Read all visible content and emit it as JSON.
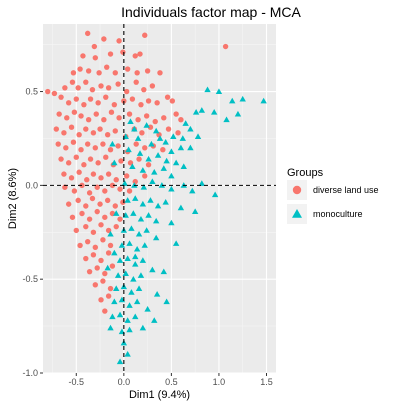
{
  "chart_data": {
    "type": "scatter",
    "title": "Individuals factor map - MCA",
    "xlabel": "Dim1 (9.4%)",
    "ylabel": "Dim2 (8.6%)",
    "xlim": [
      -0.85,
      1.6
    ],
    "ylim": [
      -1.0,
      0.86
    ],
    "x_ticks": [
      -0.5,
      0.0,
      0.5,
      1.0,
      1.5
    ],
    "x_tick_labels": [
      "-0.5",
      "0.0",
      "0.5",
      "1.0",
      "1.5"
    ],
    "y_ticks": [
      -1.0,
      -0.5,
      0.0,
      0.5
    ],
    "y_tick_labels": [
      "-1.0",
      "-0.5",
      "0.0",
      "0.5"
    ],
    "grid": true,
    "reference_lines": {
      "x": 0,
      "y": 0,
      "style": "dashed"
    },
    "legend": {
      "title": "Groups",
      "position": "right"
    },
    "series": [
      {
        "name": "diverse land use",
        "marker": "circle",
        "color": "#F8766D",
        "points": [
          [
            -0.38,
            0.81
          ],
          [
            -0.21,
            0.78
          ],
          [
            -0.31,
            0.74
          ],
          [
            -0.05,
            0.77
          ],
          [
            0.22,
            0.8
          ],
          [
            1.07,
            0.74
          ],
          [
            -0.43,
            0.69
          ],
          [
            -0.3,
            0.68
          ],
          [
            -0.14,
            0.7
          ],
          [
            -0.01,
            0.71
          ],
          [
            0.12,
            0.69
          ],
          [
            0.17,
            0.7
          ],
          [
            -0.53,
            0.6
          ],
          [
            -0.46,
            0.62
          ],
          [
            -0.37,
            0.61
          ],
          [
            -0.26,
            0.6
          ],
          [
            -0.18,
            0.63
          ],
          [
            -0.09,
            0.6
          ],
          [
            0.04,
            0.62
          ],
          [
            0.14,
            0.6
          ],
          [
            0.25,
            0.61
          ],
          [
            0.38,
            0.6
          ],
          [
            -0.62,
            0.52
          ],
          [
            -0.54,
            0.55
          ],
          [
            -0.48,
            0.52
          ],
          [
            -0.4,
            0.55
          ],
          [
            -0.33,
            0.51
          ],
          [
            -0.24,
            0.53
          ],
          [
            -0.16,
            0.52
          ],
          [
            -0.06,
            0.54
          ],
          [
            0.03,
            0.5
          ],
          [
            0.13,
            0.55
          ],
          [
            0.21,
            0.51
          ],
          [
            0.3,
            0.53
          ],
          [
            -0.8,
            0.5
          ],
          [
            -0.73,
            0.49
          ],
          [
            -0.66,
            0.47
          ],
          [
            -0.58,
            0.44
          ],
          [
            -0.5,
            0.46
          ],
          [
            -0.42,
            0.43
          ],
          [
            -0.35,
            0.46
          ],
          [
            -0.27,
            0.44
          ],
          [
            -0.19,
            0.47
          ],
          [
            -0.1,
            0.43
          ],
          [
            0.0,
            0.45
          ],
          [
            0.09,
            0.46
          ],
          [
            0.18,
            0.43
          ],
          [
            0.26,
            0.45
          ],
          [
            0.35,
            0.44
          ],
          [
            0.46,
            0.47
          ],
          [
            0.51,
            0.45
          ],
          [
            -0.68,
            0.38
          ],
          [
            -0.6,
            0.36
          ],
          [
            -0.52,
            0.39
          ],
          [
            -0.45,
            0.37
          ],
          [
            -0.37,
            0.35
          ],
          [
            -0.29,
            0.38
          ],
          [
            -0.21,
            0.35
          ],
          [
            -0.13,
            0.39
          ],
          [
            -0.05,
            0.36
          ],
          [
            0.06,
            0.38
          ],
          [
            0.15,
            0.35
          ],
          [
            0.24,
            0.37
          ],
          [
            0.33,
            0.34
          ],
          [
            0.42,
            0.36
          ],
          [
            0.55,
            0.38
          ],
          [
            0.6,
            0.35
          ],
          [
            -0.71,
            0.3
          ],
          [
            -0.63,
            0.28
          ],
          [
            -0.55,
            0.31
          ],
          [
            -0.47,
            0.27
          ],
          [
            -0.4,
            0.3
          ],
          [
            -0.32,
            0.28
          ],
          [
            -0.25,
            0.3
          ],
          [
            -0.17,
            0.27
          ],
          [
            -0.09,
            0.29
          ],
          [
            0.02,
            0.26
          ],
          [
            0.11,
            0.3
          ],
          [
            0.19,
            0.28
          ],
          [
            0.28,
            0.31
          ],
          [
            0.37,
            0.27
          ],
          [
            0.47,
            0.3
          ],
          [
            0.57,
            0.28
          ],
          [
            -0.69,
            0.22
          ],
          [
            -0.61,
            0.2
          ],
          [
            -0.53,
            0.23
          ],
          [
            -0.45,
            0.19
          ],
          [
            -0.38,
            0.22
          ],
          [
            -0.3,
            0.2
          ],
          [
            -0.22,
            0.22
          ],
          [
            -0.14,
            0.19
          ],
          [
            -0.06,
            0.21
          ],
          [
            0.04,
            0.18
          ],
          [
            0.13,
            0.22
          ],
          [
            0.22,
            0.2
          ],
          [
            0.31,
            0.21
          ],
          [
            0.41,
            0.19
          ],
          [
            -0.66,
            0.14
          ],
          [
            -0.58,
            0.12
          ],
          [
            -0.5,
            0.15
          ],
          [
            -0.42,
            0.11
          ],
          [
            -0.35,
            0.14
          ],
          [
            -0.27,
            0.12
          ],
          [
            -0.19,
            0.15
          ],
          [
            -0.11,
            0.11
          ],
          [
            -0.03,
            0.13
          ],
          [
            0.07,
            0.12
          ],
          [
            0.16,
            0.14
          ],
          [
            0.26,
            0.11
          ],
          [
            -0.63,
            0.06
          ],
          [
            -0.55,
            0.04
          ],
          [
            -0.47,
            0.07
          ],
          [
            -0.39,
            0.03
          ],
          [
            -0.32,
            0.06
          ],
          [
            -0.24,
            0.04
          ],
          [
            -0.16,
            0.06
          ],
          [
            -0.08,
            0.03
          ],
          [
            0.03,
            0.05
          ],
          [
            0.12,
            0.02
          ],
          [
            0.22,
            0.05
          ],
          [
            -0.62,
            -0.01
          ],
          [
            -0.52,
            -0.03
          ],
          [
            -0.44,
            0.0
          ],
          [
            -0.36,
            -0.04
          ],
          [
            -0.28,
            -0.01
          ],
          [
            -0.2,
            -0.03
          ],
          [
            -0.12,
            0.0
          ],
          [
            -0.04,
            -0.02
          ],
          [
            0.06,
            -0.03
          ],
          [
            -0.58,
            -0.1
          ],
          [
            -0.48,
            -0.08
          ],
          [
            -0.4,
            -0.11
          ],
          [
            -0.33,
            -0.07
          ],
          [
            -0.25,
            -0.1
          ],
          [
            -0.17,
            -0.08
          ],
          [
            -0.09,
            -0.11
          ],
          [
            -0.01,
            -0.09
          ],
          [
            -0.54,
            -0.17
          ],
          [
            -0.44,
            -0.15
          ],
          [
            -0.36,
            -0.18
          ],
          [
            -0.28,
            -0.14
          ],
          [
            -0.2,
            -0.17
          ],
          [
            -0.12,
            -0.15
          ],
          [
            -0.04,
            -0.18
          ],
          [
            -0.5,
            -0.24
          ],
          [
            -0.4,
            -0.22
          ],
          [
            -0.32,
            -0.25
          ],
          [
            -0.24,
            -0.21
          ],
          [
            -0.16,
            -0.24
          ],
          [
            -0.08,
            -0.22
          ],
          [
            -0.46,
            -0.32
          ],
          [
            -0.38,
            -0.3
          ],
          [
            -0.3,
            -0.33
          ],
          [
            -0.22,
            -0.29
          ],
          [
            -0.14,
            -0.32
          ],
          [
            -0.4,
            -0.39
          ],
          [
            -0.32,
            -0.37
          ],
          [
            -0.24,
            -0.4
          ],
          [
            -0.16,
            -0.36
          ],
          [
            -0.36,
            -0.46
          ],
          [
            -0.28,
            -0.44
          ],
          [
            -0.2,
            -0.47
          ],
          [
            -0.12,
            -0.43
          ],
          [
            -0.3,
            -0.53
          ],
          [
            -0.22,
            -0.51
          ],
          [
            -0.14,
            -0.55
          ],
          [
            -0.24,
            -0.61
          ],
          [
            -0.16,
            -0.59
          ],
          [
            -0.2,
            -0.67
          ]
        ]
      },
      {
        "name": "monoculture",
        "marker": "triangle",
        "color": "#00BFC4",
        "points": [
          [
            1.25,
            0.46
          ],
          [
            1.0,
            0.5
          ],
          [
            0.88,
            0.51
          ],
          [
            1.14,
            0.45
          ],
          [
            1.47,
            0.45
          ],
          [
            1.2,
            0.38
          ],
          [
            1.08,
            0.35
          ],
          [
            0.95,
            0.39
          ],
          [
            0.82,
            0.4
          ],
          [
            0.76,
            0.39
          ],
          [
            0.65,
            0.33
          ],
          [
            0.7,
            0.3
          ],
          [
            0.62,
            0.25
          ],
          [
            0.52,
            0.26
          ],
          [
            0.44,
            0.23
          ],
          [
            0.6,
            0.2
          ],
          [
            0.5,
            0.18
          ],
          [
            0.7,
            0.2
          ],
          [
            0.78,
            0.26
          ],
          [
            0.07,
            0.34
          ],
          [
            0.11,
            0.3
          ],
          [
            0.24,
            0.32
          ],
          [
            0.34,
            0.29
          ],
          [
            0.02,
            0.26
          ],
          [
            0.15,
            0.25
          ],
          [
            0.29,
            0.22
          ],
          [
            0.38,
            0.25
          ],
          [
            0.05,
            0.19
          ],
          [
            0.17,
            0.17
          ],
          [
            0.26,
            0.14
          ],
          [
            0.36,
            0.16
          ],
          [
            0.45,
            0.13
          ],
          [
            0.55,
            0.12
          ],
          [
            0.63,
            0.1
          ],
          [
            0.42,
            0.09
          ],
          [
            0.32,
            0.07
          ],
          [
            0.2,
            0.08
          ],
          [
            0.09,
            0.1
          ],
          [
            0.01,
            0.01
          ],
          [
            0.11,
            0.0
          ],
          [
            0.21,
            -0.01
          ],
          [
            0.3,
            0.02
          ],
          [
            0.4,
            0.0
          ],
          [
            0.5,
            -0.02
          ],
          [
            0.63,
            0.0
          ],
          [
            0.72,
            -0.03
          ],
          [
            0.82,
            0.01
          ],
          [
            0.96,
            -0.05
          ],
          [
            0.5,
            0.05
          ],
          [
            0.04,
            -0.08
          ],
          [
            0.12,
            -0.07
          ],
          [
            0.2,
            -0.1
          ],
          [
            0.28,
            -0.08
          ],
          [
            0.36,
            -0.11
          ],
          [
            0.44,
            -0.09
          ],
          [
            0.6,
            -0.12
          ],
          [
            0.75,
            -0.14
          ],
          [
            0.02,
            -0.16
          ],
          [
            0.1,
            -0.15
          ],
          [
            0.18,
            -0.18
          ],
          [
            0.26,
            -0.16
          ],
          [
            0.34,
            -0.19
          ],
          [
            0.5,
            -0.2
          ],
          [
            0.0,
            -0.24
          ],
          [
            0.08,
            -0.23
          ],
          [
            0.16,
            -0.26
          ],
          [
            0.24,
            -0.24
          ],
          [
            0.34,
            -0.28
          ],
          [
            -0.02,
            -0.32
          ],
          [
            0.06,
            -0.31
          ],
          [
            0.14,
            -0.34
          ],
          [
            0.22,
            -0.32
          ],
          [
            0.55,
            -0.31
          ],
          [
            -0.04,
            -0.4
          ],
          [
            0.04,
            -0.39
          ],
          [
            0.12,
            -0.42
          ],
          [
            0.2,
            -0.4
          ],
          [
            0.3,
            -0.45
          ],
          [
            -0.06,
            -0.48
          ],
          [
            0.02,
            -0.47
          ],
          [
            0.1,
            -0.5
          ],
          [
            0.18,
            -0.48
          ],
          [
            0.42,
            -0.46
          ],
          [
            -0.08,
            -0.55
          ],
          [
            0.0,
            -0.54
          ],
          [
            0.08,
            -0.57
          ],
          [
            0.16,
            -0.55
          ],
          [
            0.35,
            -0.58
          ],
          [
            -0.1,
            -0.62
          ],
          [
            -0.02,
            -0.61
          ],
          [
            0.06,
            -0.64
          ],
          [
            0.14,
            -0.62
          ],
          [
            0.25,
            -0.66
          ],
          [
            0.45,
            -0.62
          ],
          [
            -0.12,
            -0.7
          ],
          [
            -0.04,
            -0.69
          ],
          [
            0.04,
            -0.72
          ],
          [
            0.12,
            -0.7
          ],
          [
            0.32,
            -0.72
          ],
          [
            -0.02,
            -0.78
          ],
          [
            0.06,
            -0.77
          ],
          [
            0.2,
            -0.76
          ],
          [
            -0.14,
            -0.76
          ],
          [
            0.0,
            -0.84
          ],
          [
            0.04,
            -0.9
          ],
          [
            -0.04,
            -0.94
          ],
          [
            -0.1,
            -0.36
          ],
          [
            -0.14,
            -0.26
          ],
          [
            -0.17,
            -0.44
          ],
          [
            -0.08,
            -0.15
          ],
          [
            -0.12,
            0.22
          ],
          [
            -0.1,
            0.12
          ],
          [
            0.12,
            -0.38
          ]
        ]
      }
    ]
  }
}
